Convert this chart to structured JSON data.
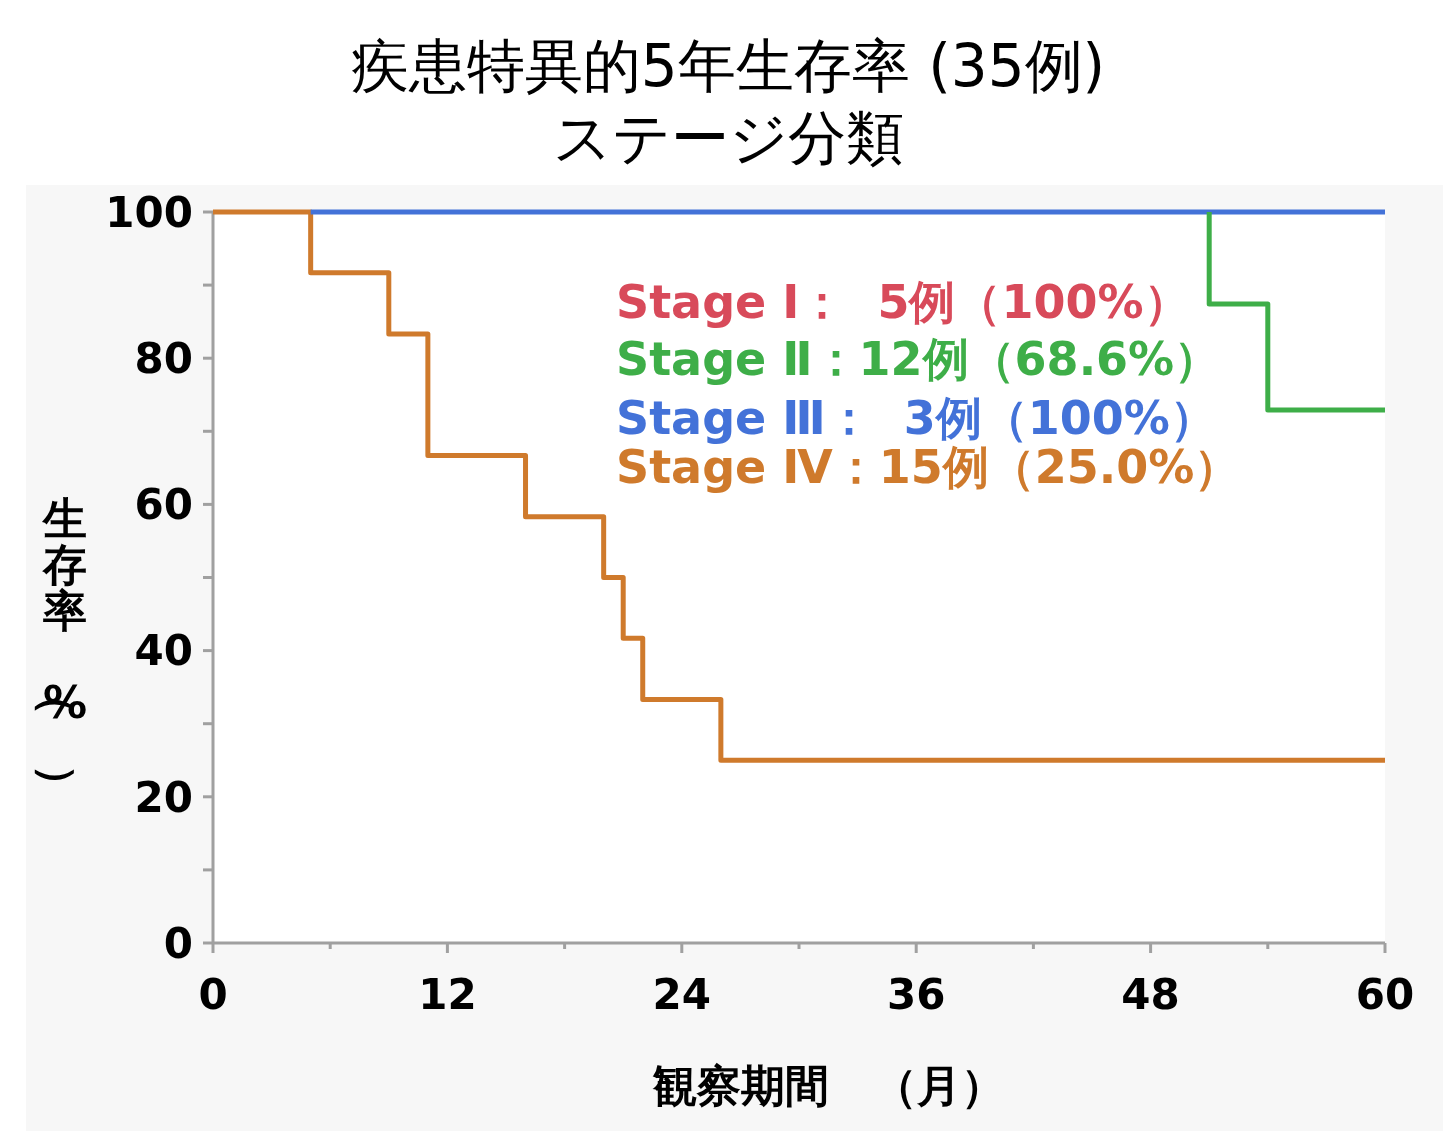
{
  "chart_data": {
    "type": "step",
    "title": "疾患特異的5年生存率 (35例)",
    "subtitle": "ステージ分類",
    "xlabel": "観察期間　（月）",
    "ylabel": "生存率（%）",
    "x": [
      0,
      5,
      9,
      11,
      16,
      20,
      21,
      22,
      26,
      51,
      54,
      60
    ],
    "series": [
      {
        "name": "Stage Ⅰ：  5例（100%）",
        "color": "#d84a5a",
        "values": [
          null,
          null,
          null,
          null,
          null,
          null,
          null,
          null,
          null,
          null,
          null,
          null
        ]
      },
      {
        "name": "Stage Ⅱ：12例（68.6%）",
        "color": "#3eae48",
        "x": [
          51,
          51,
          54,
          60
        ],
        "values": [
          100,
          87.4,
          72.9,
          72.9
        ]
      },
      {
        "name": "Stage Ⅲ：  3例（100%）",
        "color": "#4372d8",
        "x": [
          5,
          60
        ],
        "values": [
          100,
          100
        ]
      },
      {
        "name": "Stage Ⅳ：15例（25.0%）",
        "color": "#cf7a2c",
        "values": [
          100,
          91.7,
          83.3,
          66.7,
          58.3,
          50,
          41.7,
          33.3,
          25,
          25,
          25,
          25
        ]
      }
    ],
    "xlim": [
      0,
      60
    ],
    "xticks": [
      0,
      {
        "value": 6,
        "label": null
      },
      12,
      {
        "value": 18,
        "label": null
      },
      24,
      {
        "value": 30,
        "label": null
      },
      36,
      {
        "value": 42,
        "label": null
      },
      48,
      {
        "value": 54,
        "label": null
      },
      60
    ],
    "ylim": [
      0,
      100
    ],
    "yticks": [
      0,
      {
        "value": 10,
        "label": null
      },
      20,
      {
        "value": 30,
        "label": null
      },
      40,
      {
        "value": 50,
        "label": null
      },
      60,
      {
        "value": 70,
        "label": null
      },
      80,
      {
        "value": 90,
        "label": null
      },
      100
    ],
    "legend": "top right",
    "grid": false
  }
}
